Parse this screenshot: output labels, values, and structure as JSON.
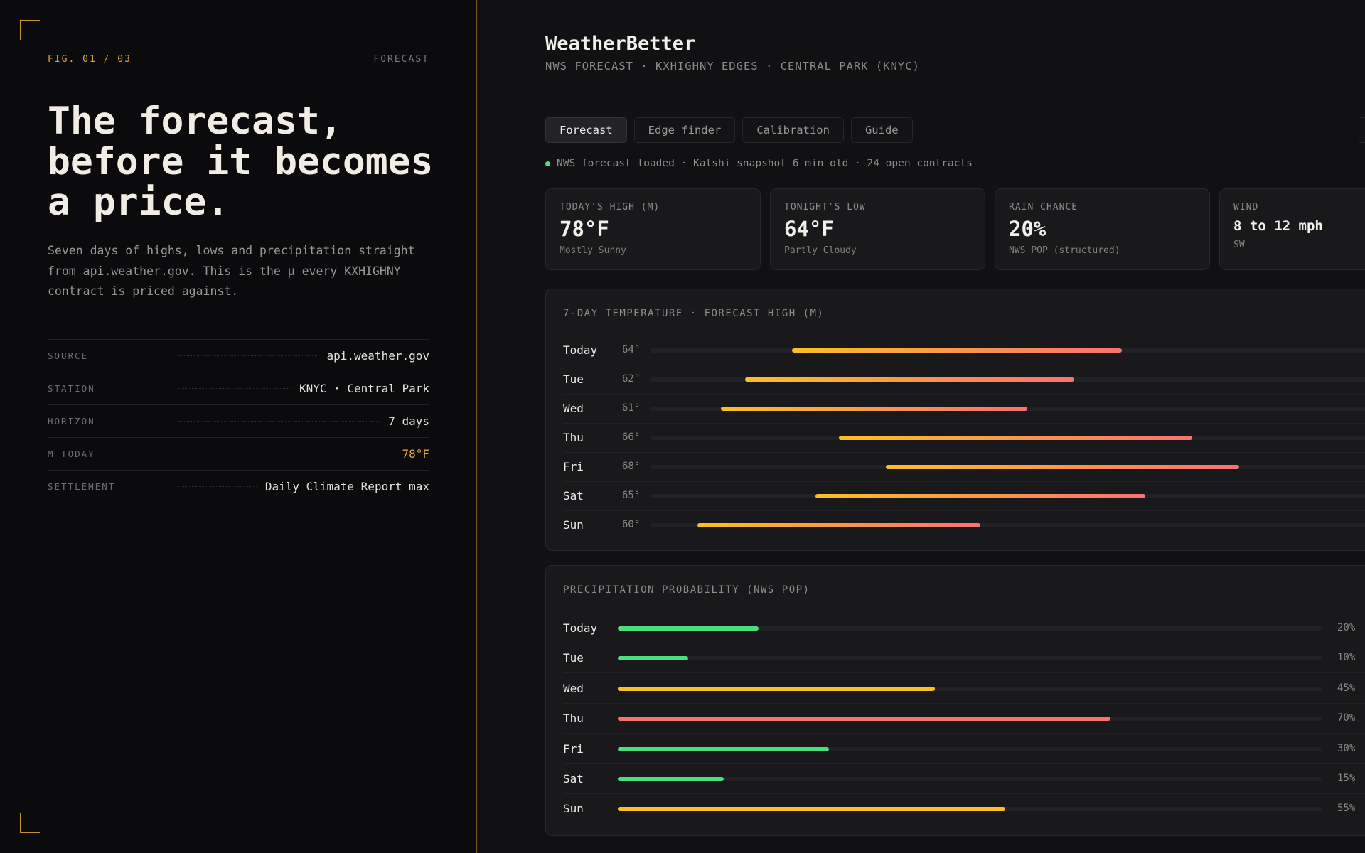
{
  "left": {
    "fig_label": "FIG. 01 / 03",
    "fig_kind": "FORECAST",
    "headline": "The forecast, before it becomes a price.",
    "lede": "Seven days of highs, lows and precipitation straight from api.weather.gov. This is the μ every KXHIGHNY contract is priced against.",
    "meta": [
      {
        "key": "SOURCE",
        "value": "api.weather.gov"
      },
      {
        "key": "STATION",
        "value": "KNYC · Central Park"
      },
      {
        "key": "HORIZON",
        "value": "7 days"
      },
      {
        "key": "M TODAY",
        "value": "78°F"
      },
      {
        "key": "SETTLEMENT",
        "value": "Daily Climate Report max"
      }
    ]
  },
  "app": {
    "title": "WeatherBetter",
    "subtitle": "NWS FORECAST · KXHIGHNY EDGES · CENTRAL PARK (KNYC)",
    "tabs": [
      "Forecast",
      "Edge finder",
      "Calibration",
      "Guide"
    ],
    "active_tab": "Forecast",
    "status": "NWS forecast loaded · Kalshi snapshot 6 min old · 24 open contracts",
    "cards": [
      {
        "label": "TODAY'S HIGH (M)",
        "value": "78°F",
        "note": "Mostly Sunny"
      },
      {
        "label": "TONIGHT'S LOW",
        "value": "64°F",
        "note": "Partly Cloudy"
      },
      {
        "label": "RAIN CHANCE",
        "value": "20%",
        "note": "NWS POP (structured)"
      },
      {
        "label": "WIND",
        "value": "8 to 12 mph",
        "note": "SW"
      }
    ]
  },
  "colors": {
    "accent": "#e0a53f",
    "ok": "#4ade80",
    "warn": "#fbbf24",
    "hot": "#f87171"
  },
  "chart_data": [
    {
      "type": "bar",
      "title": "7-DAY TEMPERATURE · FORECAST HIGH (M)",
      "categories": [
        "Today",
        "Tue",
        "Wed",
        "Thu",
        "Fri",
        "Sat",
        "Sun"
      ],
      "low_labels": [
        "64°",
        "62°",
        "61°",
        "66°",
        "68°",
        "65°",
        "60°"
      ],
      "low": [
        64,
        62,
        61,
        66,
        68,
        65,
        60
      ],
      "high": [
        78,
        76,
        74,
        81,
        83,
        79,
        72
      ],
      "xlim": [
        58,
        90
      ],
      "colors": [
        "#fbbf24",
        "#f87171"
      ]
    },
    {
      "type": "bar",
      "title": "PRECIPITATION PROBABILITY (NWS POP)",
      "categories": [
        "Today",
        "Tue",
        "Wed",
        "Thu",
        "Fri",
        "Sat",
        "Sun"
      ],
      "labels": [
        "20%",
        "10%",
        "45%",
        "70%",
        "30%",
        "15%",
        "55%"
      ],
      "values": [
        20,
        10,
        45,
        70,
        30,
        15,
        55
      ],
      "xlim": [
        0,
        100
      ],
      "bar_colors": [
        "#4ade80",
        "#4ade80",
        "#fbbf24",
        "#f87171",
        "#4ade80",
        "#4ade80",
        "#fbbf24"
      ]
    }
  ]
}
